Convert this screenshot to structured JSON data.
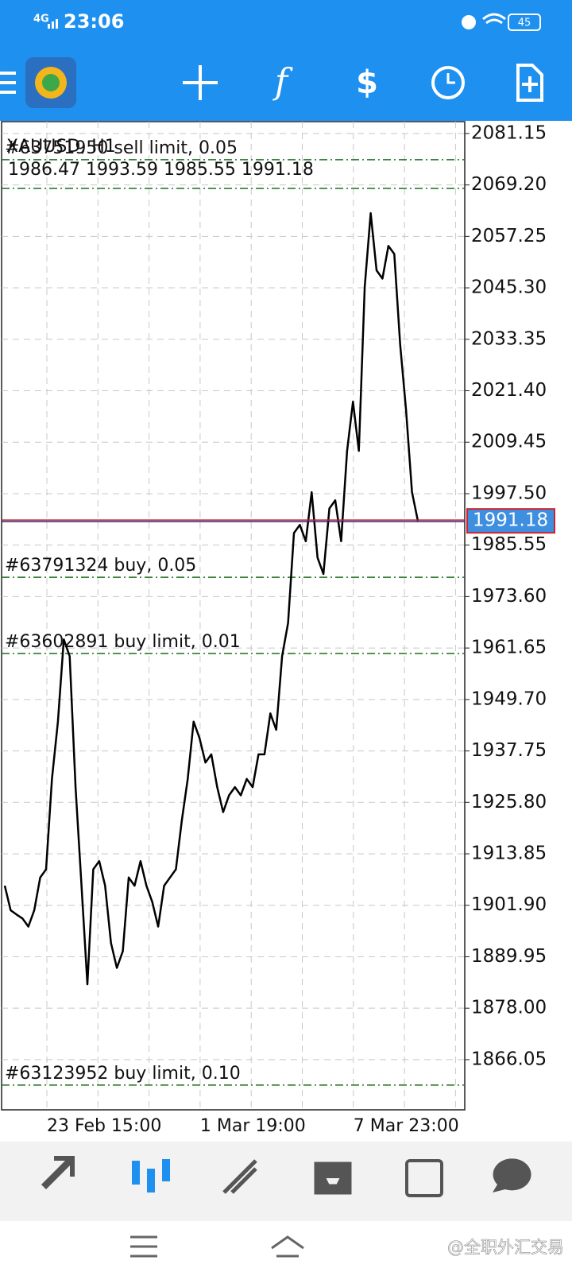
{
  "status_bar": {
    "network": "4G",
    "time": "23:06",
    "battery": "45"
  },
  "chart_data": {
    "type": "line",
    "title": "XAUUSD, H1",
    "ohlc": "1986.47 1993.59 1985.55 1991.18",
    "values": [
      1906.45,
      1900.75,
      1899.75,
      1898.85,
      1896.95,
      1900.75,
      1908.35,
      1910.25,
      1931.25,
      1944.55,
      1963.65,
      1959.75,
      1929.35,
      1906.45,
      1883.55,
      1910.25,
      1912.15,
      1906.45,
      1893.15,
      1887.35,
      1891.25,
      1908.35,
      1906.45,
      1912.15,
      1906.45,
      1902.65,
      1896.95,
      1906.45,
      1908.35,
      1910.25,
      1921.65,
      1931.25,
      1944.55,
      1940.75,
      1935.05,
      1936.95,
      1929.35,
      1923.55,
      1927.45,
      1929.35,
      1927.45,
      1931.25,
      1929.35,
      1936.95,
      1936.95,
      1946.45,
      1942.65,
      1959.75,
      1967.45,
      1988.35,
      1990.25,
      1986.45,
      1997.85,
      1982.65,
      1978.85,
      1994.05,
      1995.95,
      1986.45,
      2007.45,
      2018.85,
      2007.45,
      2045.55,
      2062.65,
      2049.35,
      2047.45,
      2055.05,
      2053.15,
      2032.15,
      2016.95,
      1997.85,
      1991.18
    ],
    "color": "#000000",
    "ylim": [
      1854.4,
      2083.9
    ],
    "yticks": [
      2081.15,
      {
        "value": 2069.2,
        "label": "2069.20"
      },
      2057.25,
      {
        "value": 2045.3,
        "label": "2045.30"
      },
      2033.35,
      {
        "value": 2021.4,
        "label": "2021.40"
      },
      2009.45,
      {
        "value": 1997.5,
        "label": "1997.50"
      },
      1985.55,
      {
        "value": 1973.6,
        "label": "1973.60"
      },
      1961.65,
      {
        "value": 1949.7,
        "label": "1949.70"
      },
      1937.75,
      {
        "value": 1925.8,
        "label": "1925.80"
      },
      1913.85,
      {
        "value": 1901.9,
        "label": "1901.90"
      },
      1889.95,
      {
        "value": 1878,
        "label": "1878.00"
      },
      1866.05
    ],
    "xticks": [
      "23 Feb 15:00",
      null,
      null,
      "1 Mar 19:00",
      null,
      null,
      "7 Mar 23:00",
      null,
      null
    ],
    "grid": true,
    "current_price": 1991.18,
    "orders": [
      {
        "label": "#63751950 sell limit, 0.05",
        "price": 2075.05
      },
      {
        "price": 2068.39
      },
      {
        "label": "#63791324 buy, 0.05",
        "price": 1978.08
      },
      {
        "label": "#63602891 buy limit, 0.01",
        "price": 1960.37
      },
      {
        "label": "#63123952 buy limit, 0.10",
        "price": 1860.15
      }
    ]
  },
  "watermark": "@全职外汇交易"
}
